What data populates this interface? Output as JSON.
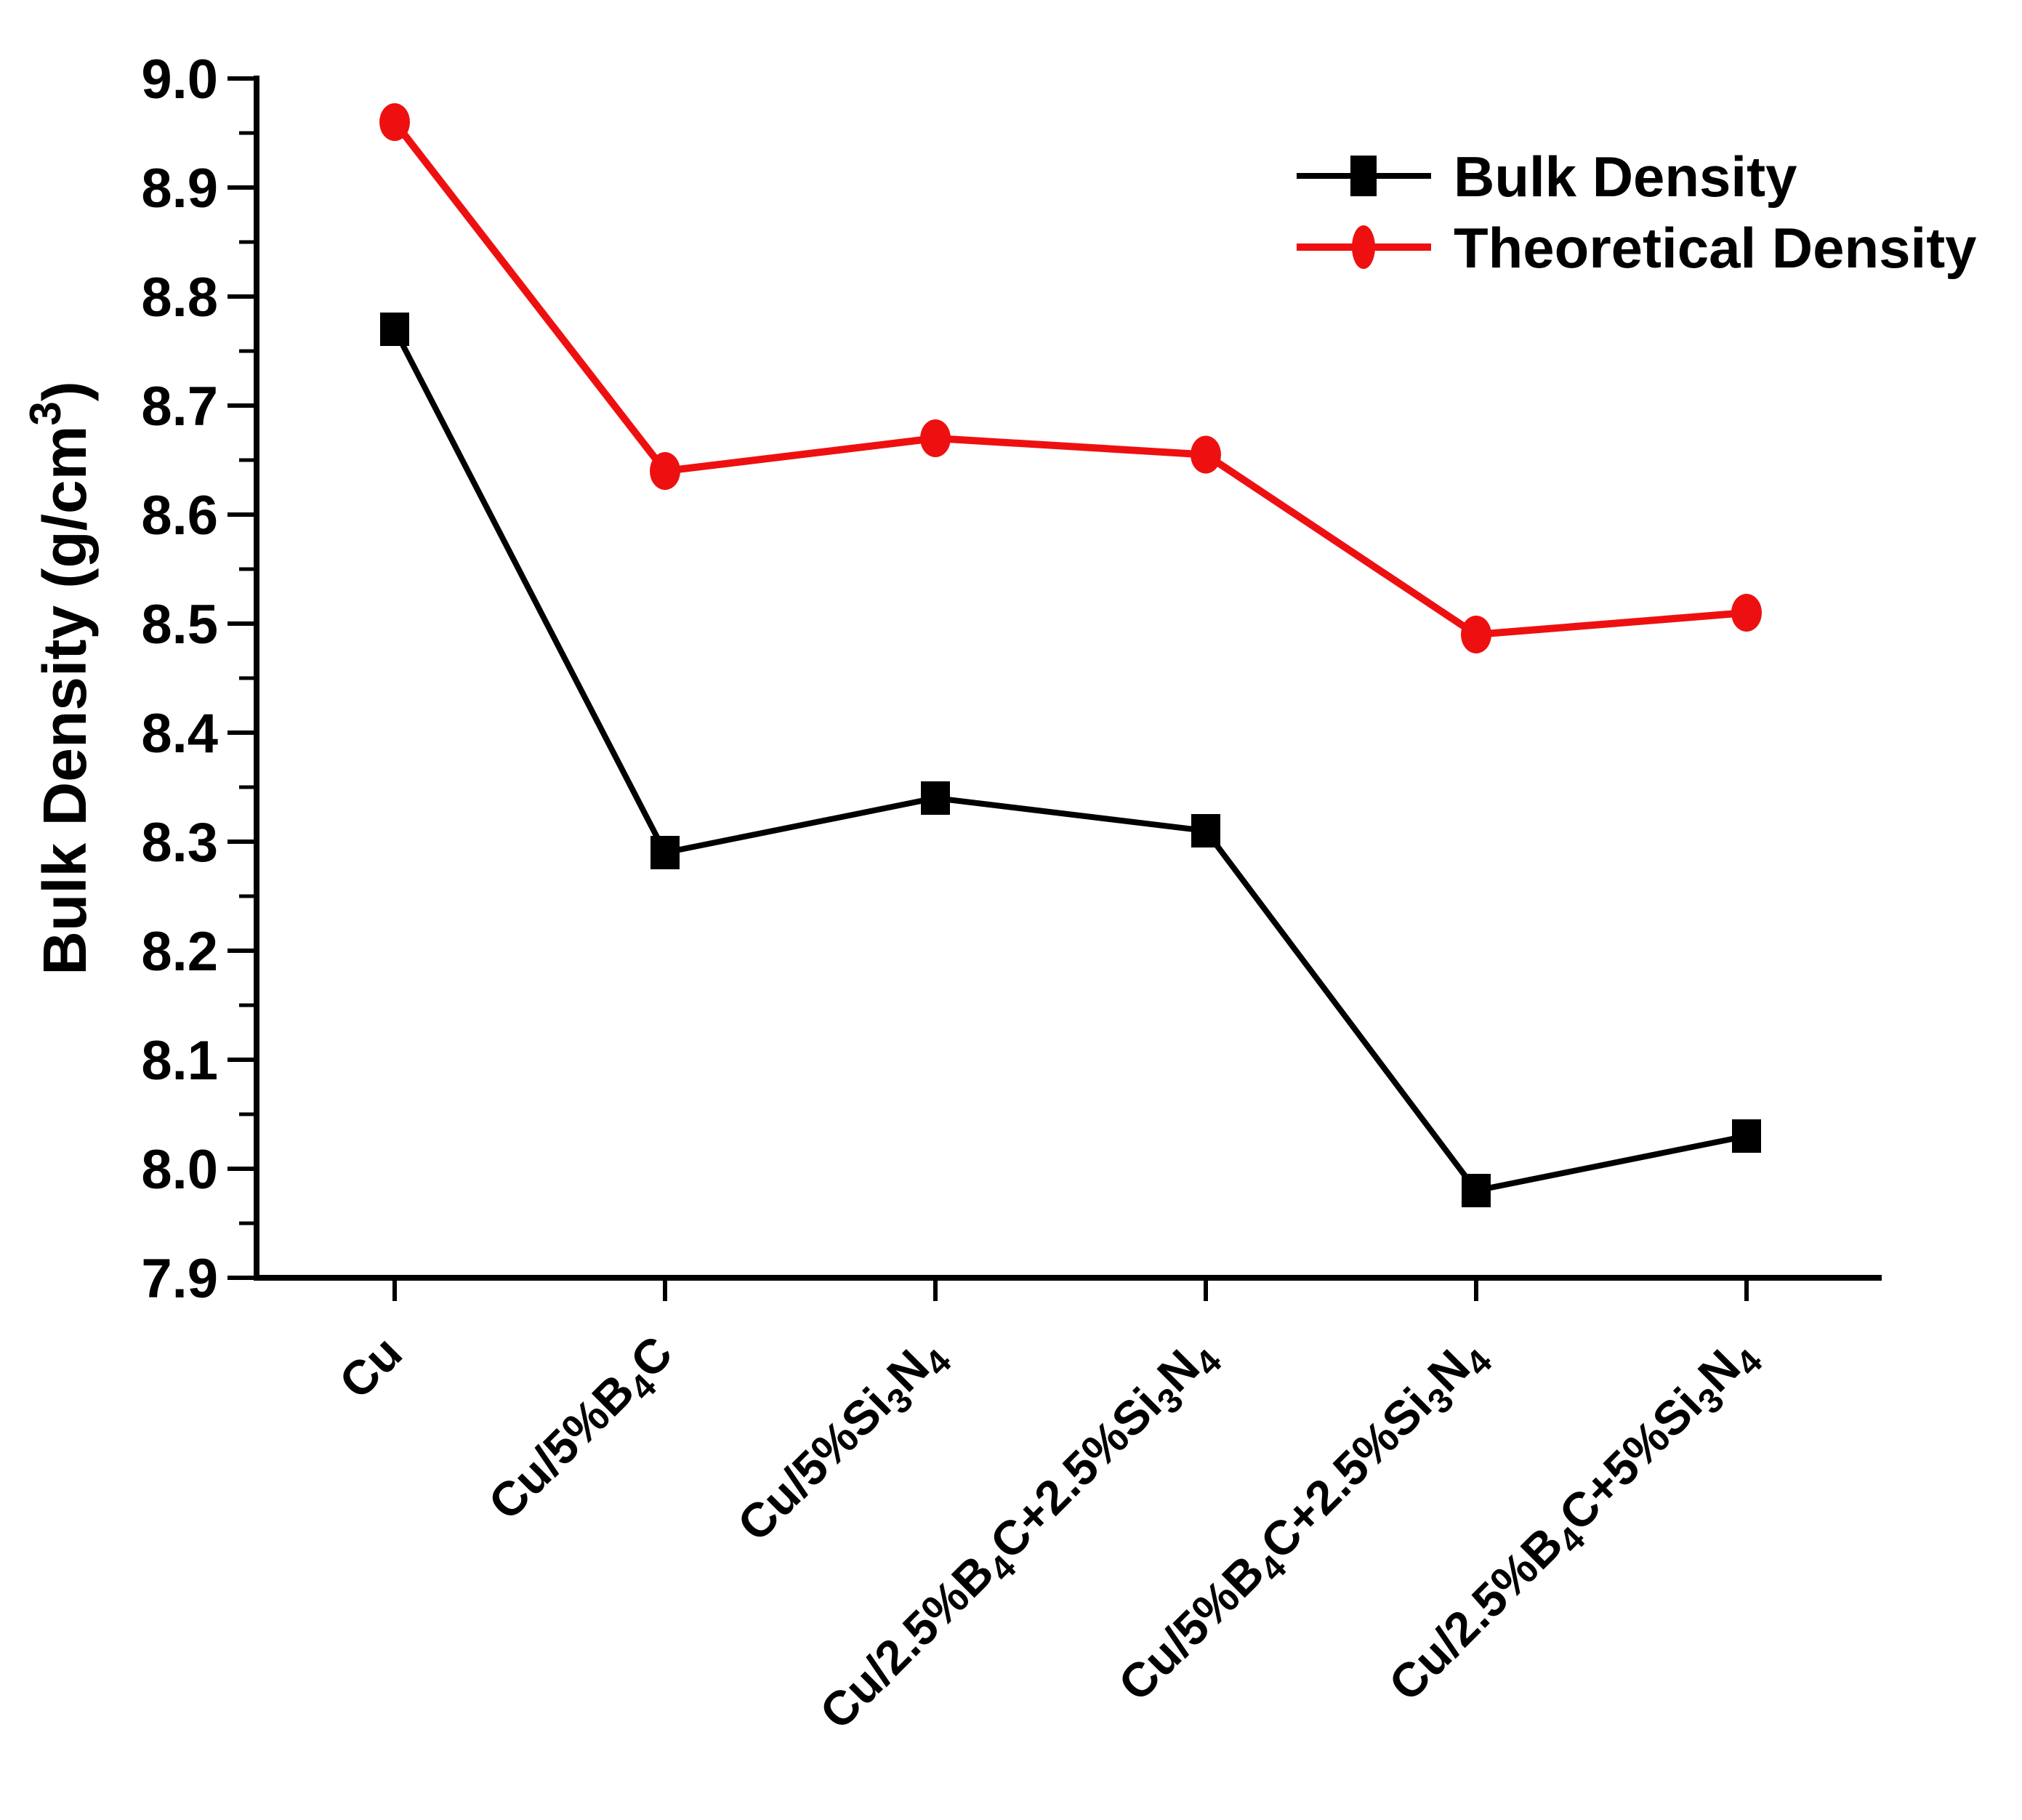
{
  "figure": {
    "background": "#ffffff",
    "text_color": "#000000"
  },
  "chart_data": {
    "type": "line",
    "title": "",
    "xlabel": "",
    "ylabel": "Bulk Density (g/cm³)",
    "ylabel_segments": [
      {
        "t": "Bulk Density (g/cm"
      },
      {
        "t": "3",
        "sup": true
      },
      {
        "t": ")"
      }
    ],
    "categories": [
      "Cu",
      "Cu/5%B₄C",
      "Cu/5%Si₃N₄",
      "Cu/2.5%B₄C+2.5%Si₃N₄",
      "Cu/5%B₄C+2.5%Si₃N₄",
      "Cu/2.5%B₄C+5%Si₃N₄"
    ],
    "category_segments": [
      [
        {
          "t": "Cu"
        }
      ],
      [
        {
          "t": "Cu/5%B"
        },
        {
          "t": "4",
          "sub": true
        },
        {
          "t": "C"
        }
      ],
      [
        {
          "t": "Cu/5%Si"
        },
        {
          "t": "3",
          "sub": true
        },
        {
          "t": "N"
        },
        {
          "t": "4",
          "sub": true
        }
      ],
      [
        {
          "t": "Cu/2.5%B"
        },
        {
          "t": "4",
          "sub": true
        },
        {
          "t": "C+2.5%Si"
        },
        {
          "t": "3",
          "sub": true
        },
        {
          "t": "N"
        },
        {
          "t": "4",
          "sub": true
        }
      ],
      [
        {
          "t": "Cu/5%B"
        },
        {
          "t": "4",
          "sub": true
        },
        {
          "t": "C+2.5%Si"
        },
        {
          "t": "3",
          "sub": true
        },
        {
          "t": "N"
        },
        {
          "t": "4",
          "sub": true
        }
      ],
      [
        {
          "t": "Cu/2.5%B"
        },
        {
          "t": "4",
          "sub": true
        },
        {
          "t": "C+5%Si"
        },
        {
          "t": "3",
          "sub": true
        },
        {
          "t": "N"
        },
        {
          "t": "4",
          "sub": true
        }
      ]
    ],
    "series": [
      {
        "name": "Bulk Density",
        "color": "#000000",
        "marker": "square",
        "line_width": 8,
        "values": [
          8.77,
          8.29,
          8.34,
          8.31,
          7.98,
          8.03
        ]
      },
      {
        "name": "Theoretical Density",
        "color": "#ee1010",
        "marker": "circle",
        "line_width": 10,
        "values": [
          8.96,
          8.64,
          8.67,
          8.655,
          8.49,
          8.51
        ]
      }
    ],
    "ylim": [
      7.9,
      9.0
    ],
    "ytick_major": 0.1,
    "ytick_minor": 0.05,
    "ytick_label_format": "one-decimal",
    "grid": false,
    "legend_position": "top-right"
  }
}
